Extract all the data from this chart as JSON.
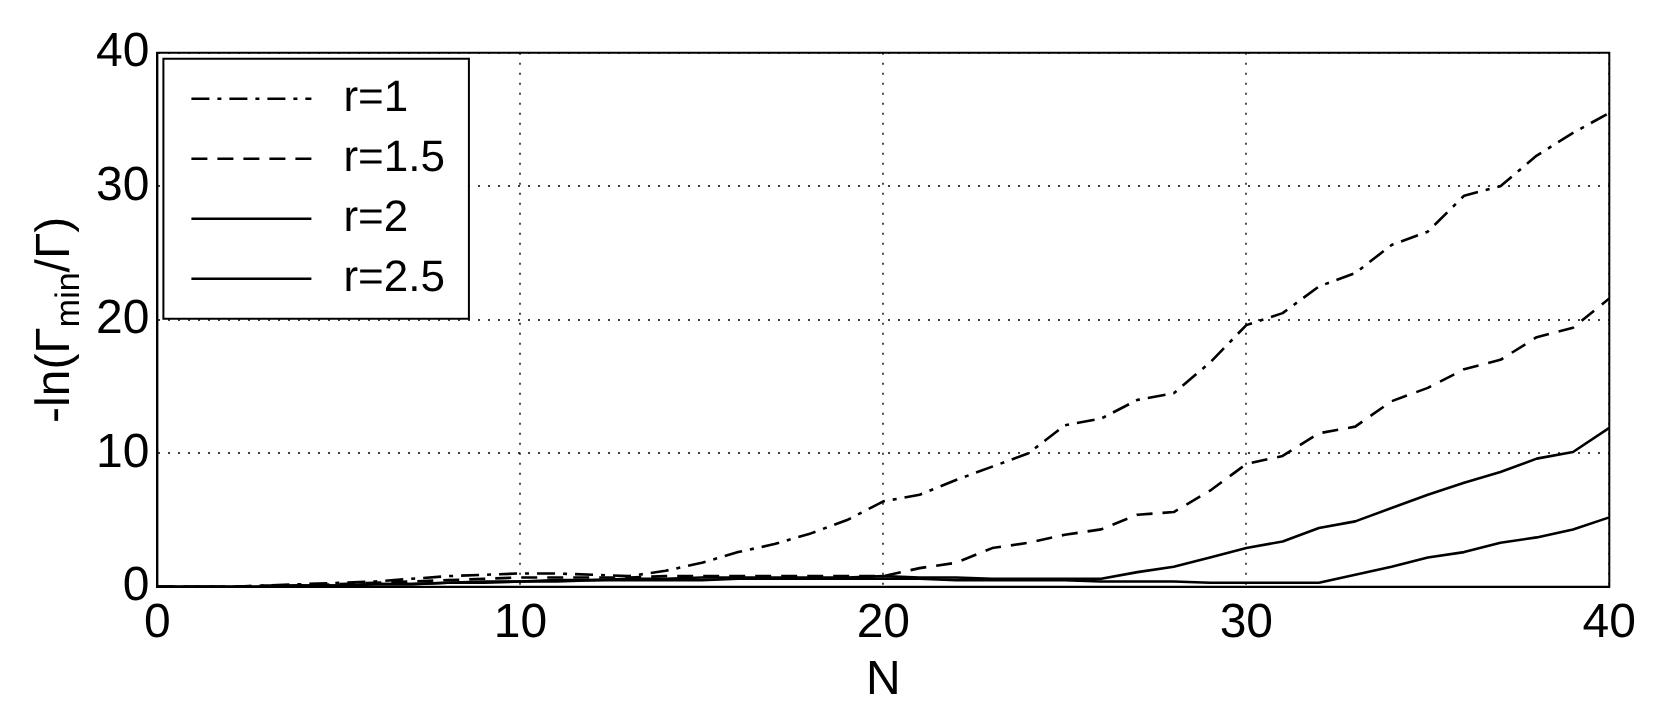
{
  "chart_data": {
    "type": "line",
    "xlabel": "N",
    "ylabel": "-ln(Γ$_{min}$/Γ)",
    "x": [
      0,
      1,
      2,
      3,
      4,
      5,
      6,
      7,
      8,
      9,
      10,
      11,
      12,
      13,
      14,
      15,
      16,
      17,
      18,
      19,
      20,
      21,
      22,
      23,
      24,
      25,
      26,
      27,
      28,
      29,
      30,
      31,
      32,
      33,
      34,
      35,
      36,
      37,
      38,
      39,
      40
    ],
    "series": [
      {
        "name": "r=1",
        "color": "#000000",
        "line_style": "dashdot",
        "values": [
          0,
          0,
          0,
          0.1,
          0.2,
          0.3,
          0.4,
          0.6,
          0.8,
          0.9,
          1,
          1,
          0.9,
          0.8,
          1.2,
          1.8,
          2.6,
          3.2,
          4,
          5,
          6.4,
          6.9,
          8,
          9,
          10,
          12.1,
          12.6,
          14,
          14.5,
          16.8,
          19.6,
          20.5,
          22.5,
          23.5,
          25.6,
          26.6,
          29.3,
          30,
          32.3,
          34,
          35.5
        ]
      },
      {
        "name": "r=1.5",
        "color": "#000000",
        "line_style": "dashed",
        "values": [
          0,
          0,
          0,
          0.1,
          0.1,
          0.2,
          0.3,
          0.4,
          0.5,
          0.6,
          0.7,
          0.7,
          0.7,
          0.7,
          0.8,
          0.8,
          0.8,
          0.8,
          0.8,
          0.8,
          0.8,
          1.4,
          1.8,
          2.9,
          3.3,
          3.9,
          4.3,
          5.4,
          5.6,
          7.2,
          9.2,
          9.8,
          11.5,
          12,
          13.9,
          14.9,
          16.3,
          17,
          18.7,
          19.4,
          21.6
        ]
      },
      {
        "name": "r=2",
        "color": "#000000",
        "line_style": "solid",
        "values": [
          0,
          0,
          0,
          0,
          0.1,
          0.1,
          0.2,
          0.2,
          0.3,
          0.4,
          0.4,
          0.5,
          0.5,
          0.6,
          0.6,
          0.7,
          0.7,
          0.7,
          0.7,
          0.7,
          0.8,
          0.7,
          0.7,
          0.6,
          0.6,
          0.6,
          0.6,
          1.1,
          1.5,
          2.2,
          2.9,
          3.4,
          4.4,
          4.9,
          5.9,
          6.9,
          7.8,
          8.6,
          9.6,
          10.1,
          11.9
        ]
      },
      {
        "name": "r=2.5",
        "color": "#000000",
        "line_style": "solid",
        "values": [
          0,
          0,
          0,
          0,
          0.1,
          0.1,
          0.2,
          0.2,
          0.3,
          0.3,
          0.4,
          0.4,
          0.5,
          0.5,
          0.5,
          0.5,
          0.6,
          0.6,
          0.6,
          0.6,
          0.6,
          0.6,
          0.5,
          0.5,
          0.5,
          0.5,
          0.4,
          0.4,
          0.4,
          0.3,
          0.3,
          0.3,
          0.3,
          0.9,
          1.5,
          2.2,
          2.6,
          3.3,
          3.7,
          4.3,
          5.2
        ]
      }
    ],
    "xlim": [
      0,
      40
    ],
    "xticks": [
      0,
      10,
      20,
      30,
      40
    ],
    "ylim": [
      0,
      40
    ],
    "yticks": [
      0,
      10,
      20,
      30,
      40
    ],
    "grid": true,
    "legend": "top left"
  }
}
